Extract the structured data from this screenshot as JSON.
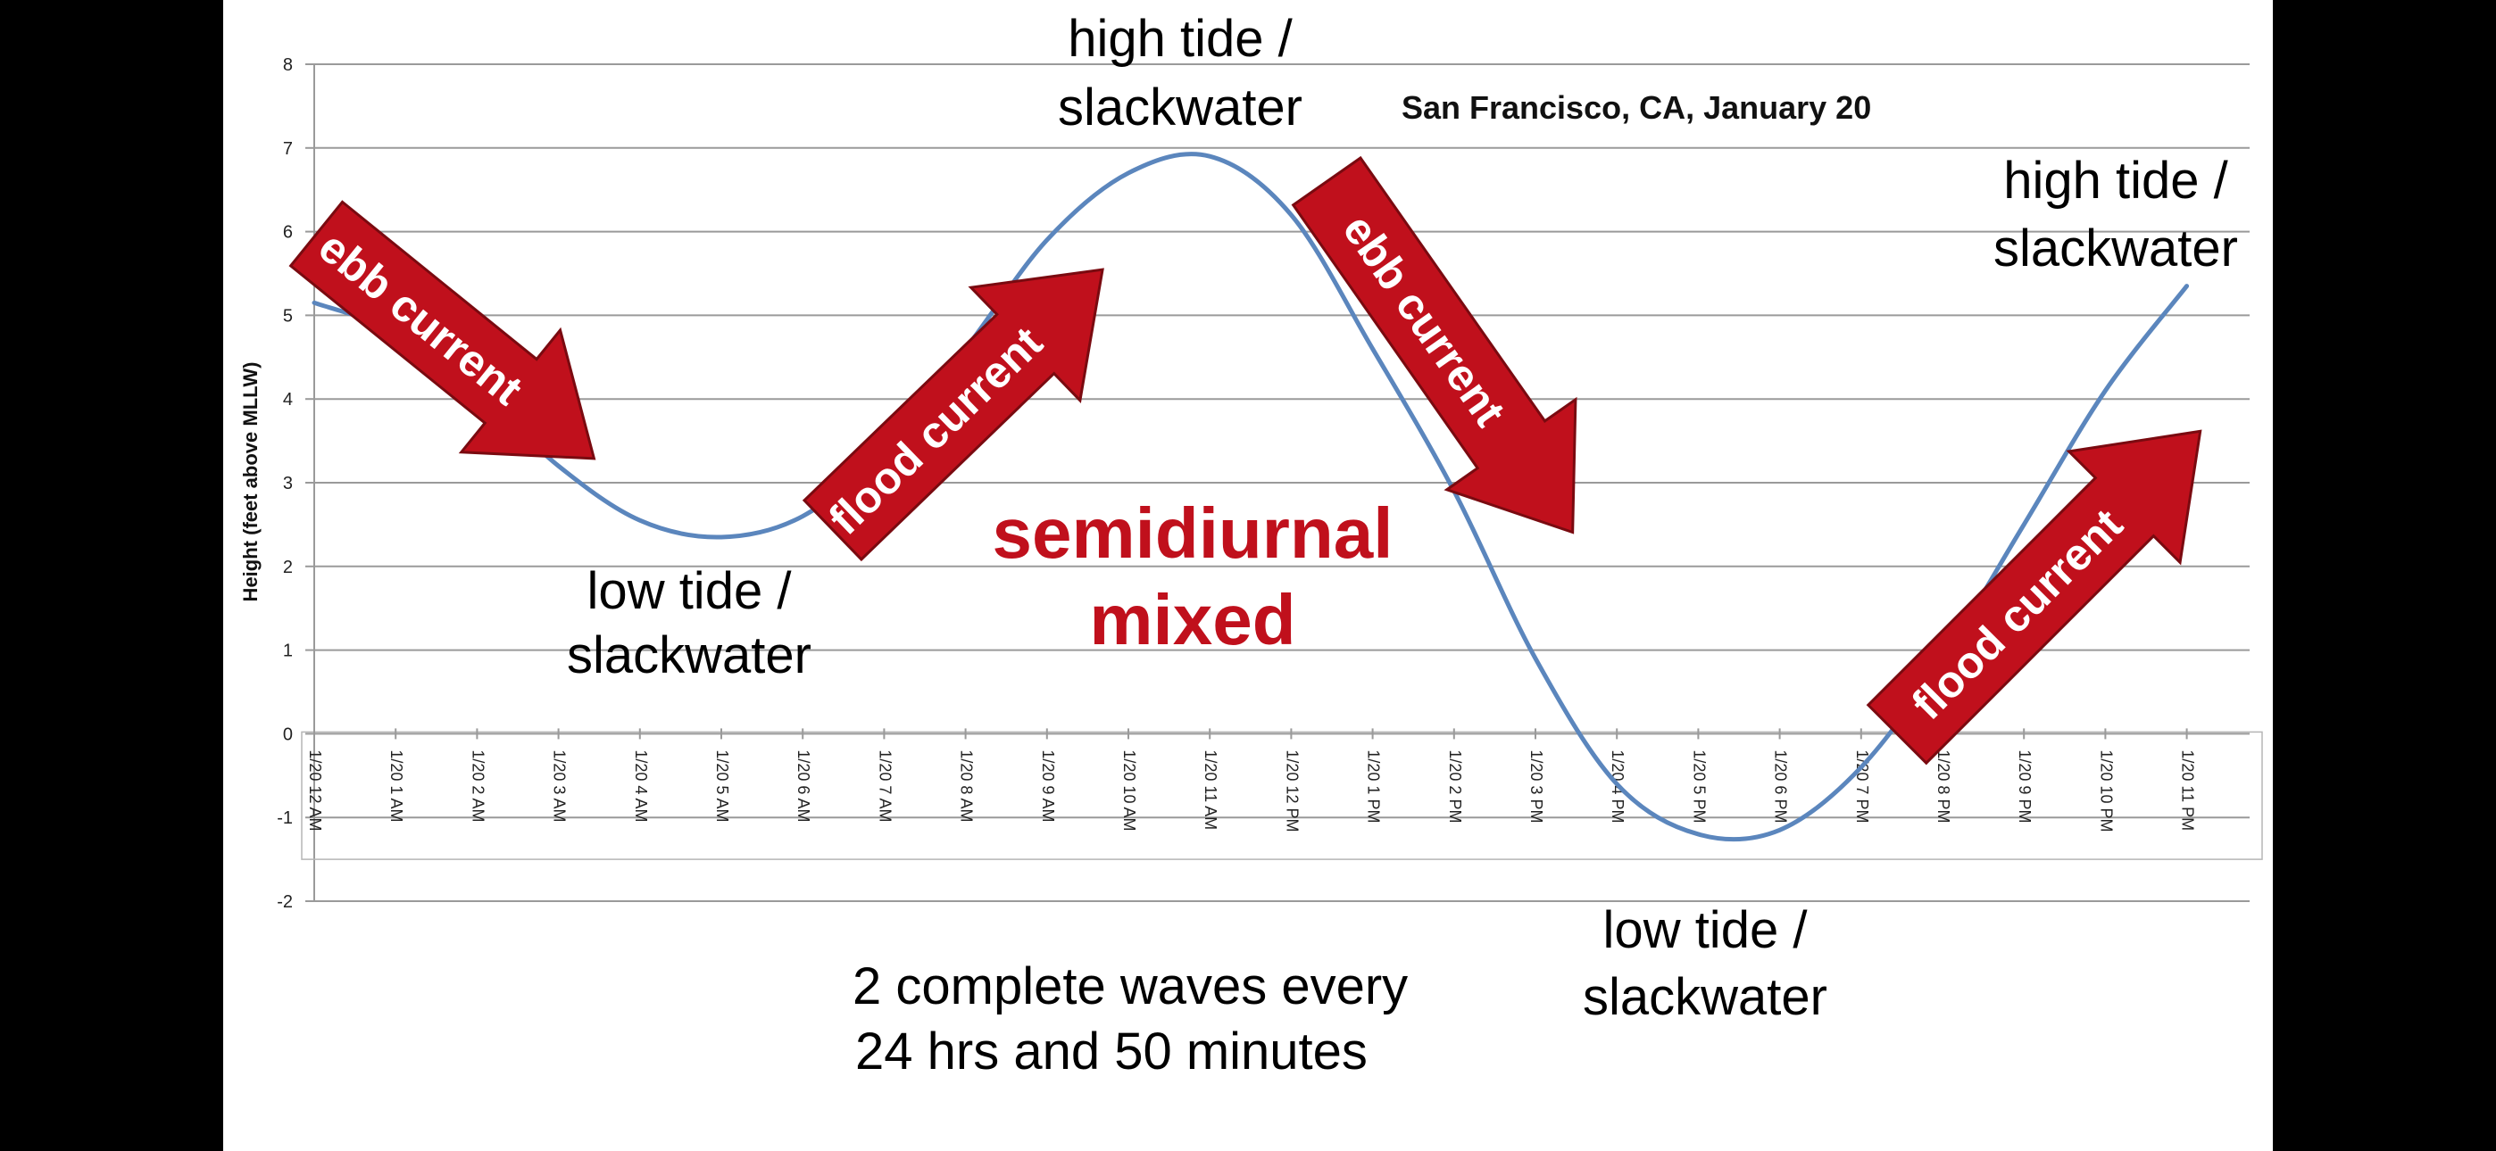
{
  "chart_data": {
    "type": "line",
    "title": "San Francisco, CA, January 20",
    "ylabel": "Height (feet above MLLW)",
    "xlabel": "",
    "ylim": [
      -2,
      8
    ],
    "yticks": [
      -2,
      -1,
      0,
      1,
      2,
      3,
      4,
      5,
      6,
      7,
      8
    ],
    "categories": [
      "1/20 12 AM",
      "1/20 1 AM",
      "1/20 2 AM",
      "1/20 3 AM",
      "1/20 4 AM",
      "1/20 5 AM",
      "1/20 6 AM",
      "1/20 7 AM",
      "1/20 8 AM",
      "1/20 9 AM",
      "1/20 10 AM",
      "1/20 11 AM",
      "1/20 12 PM",
      "1/20 1 PM",
      "1/20 2 PM",
      "1/20 3 PM",
      "1/20 4 PM",
      "1/20 5 PM",
      "1/20 6 PM",
      "1/20 7 PM",
      "1/20 8 PM",
      "1/20 9 PM",
      "1/20 10 PM",
      "1/20 11 PM"
    ],
    "series": [
      {
        "values": [
          5.15,
          4.8,
          4.1,
          3.2,
          2.55,
          2.35,
          2.6,
          3.4,
          4.6,
          5.9,
          6.7,
          6.9,
          6.2,
          4.6,
          2.9,
          0.9,
          -0.6,
          -1.2,
          -1.15,
          -0.4,
          0.9,
          2.5,
          4.1,
          5.35
        ],
        "color": "#5b86bd"
      }
    ],
    "annotations": {
      "high_tide_1": [
        "high tide /",
        "slackwater"
      ],
      "high_tide_2": [
        "high tide /",
        "slackwater"
      ],
      "low_tide_1": [
        "low tide /",
        "slackwater"
      ],
      "low_tide_2": [
        "low tide /",
        "slackwater"
      ],
      "tide_type": [
        "semidiurnal",
        "mixed"
      ],
      "caption": [
        "2 complete waves every",
        "24 hrs and 50 minutes"
      ],
      "arrows": [
        "ebb current",
        "flood current",
        "ebb current",
        "flood current"
      ]
    },
    "arrow_color": "#c0101c",
    "grid": true
  }
}
